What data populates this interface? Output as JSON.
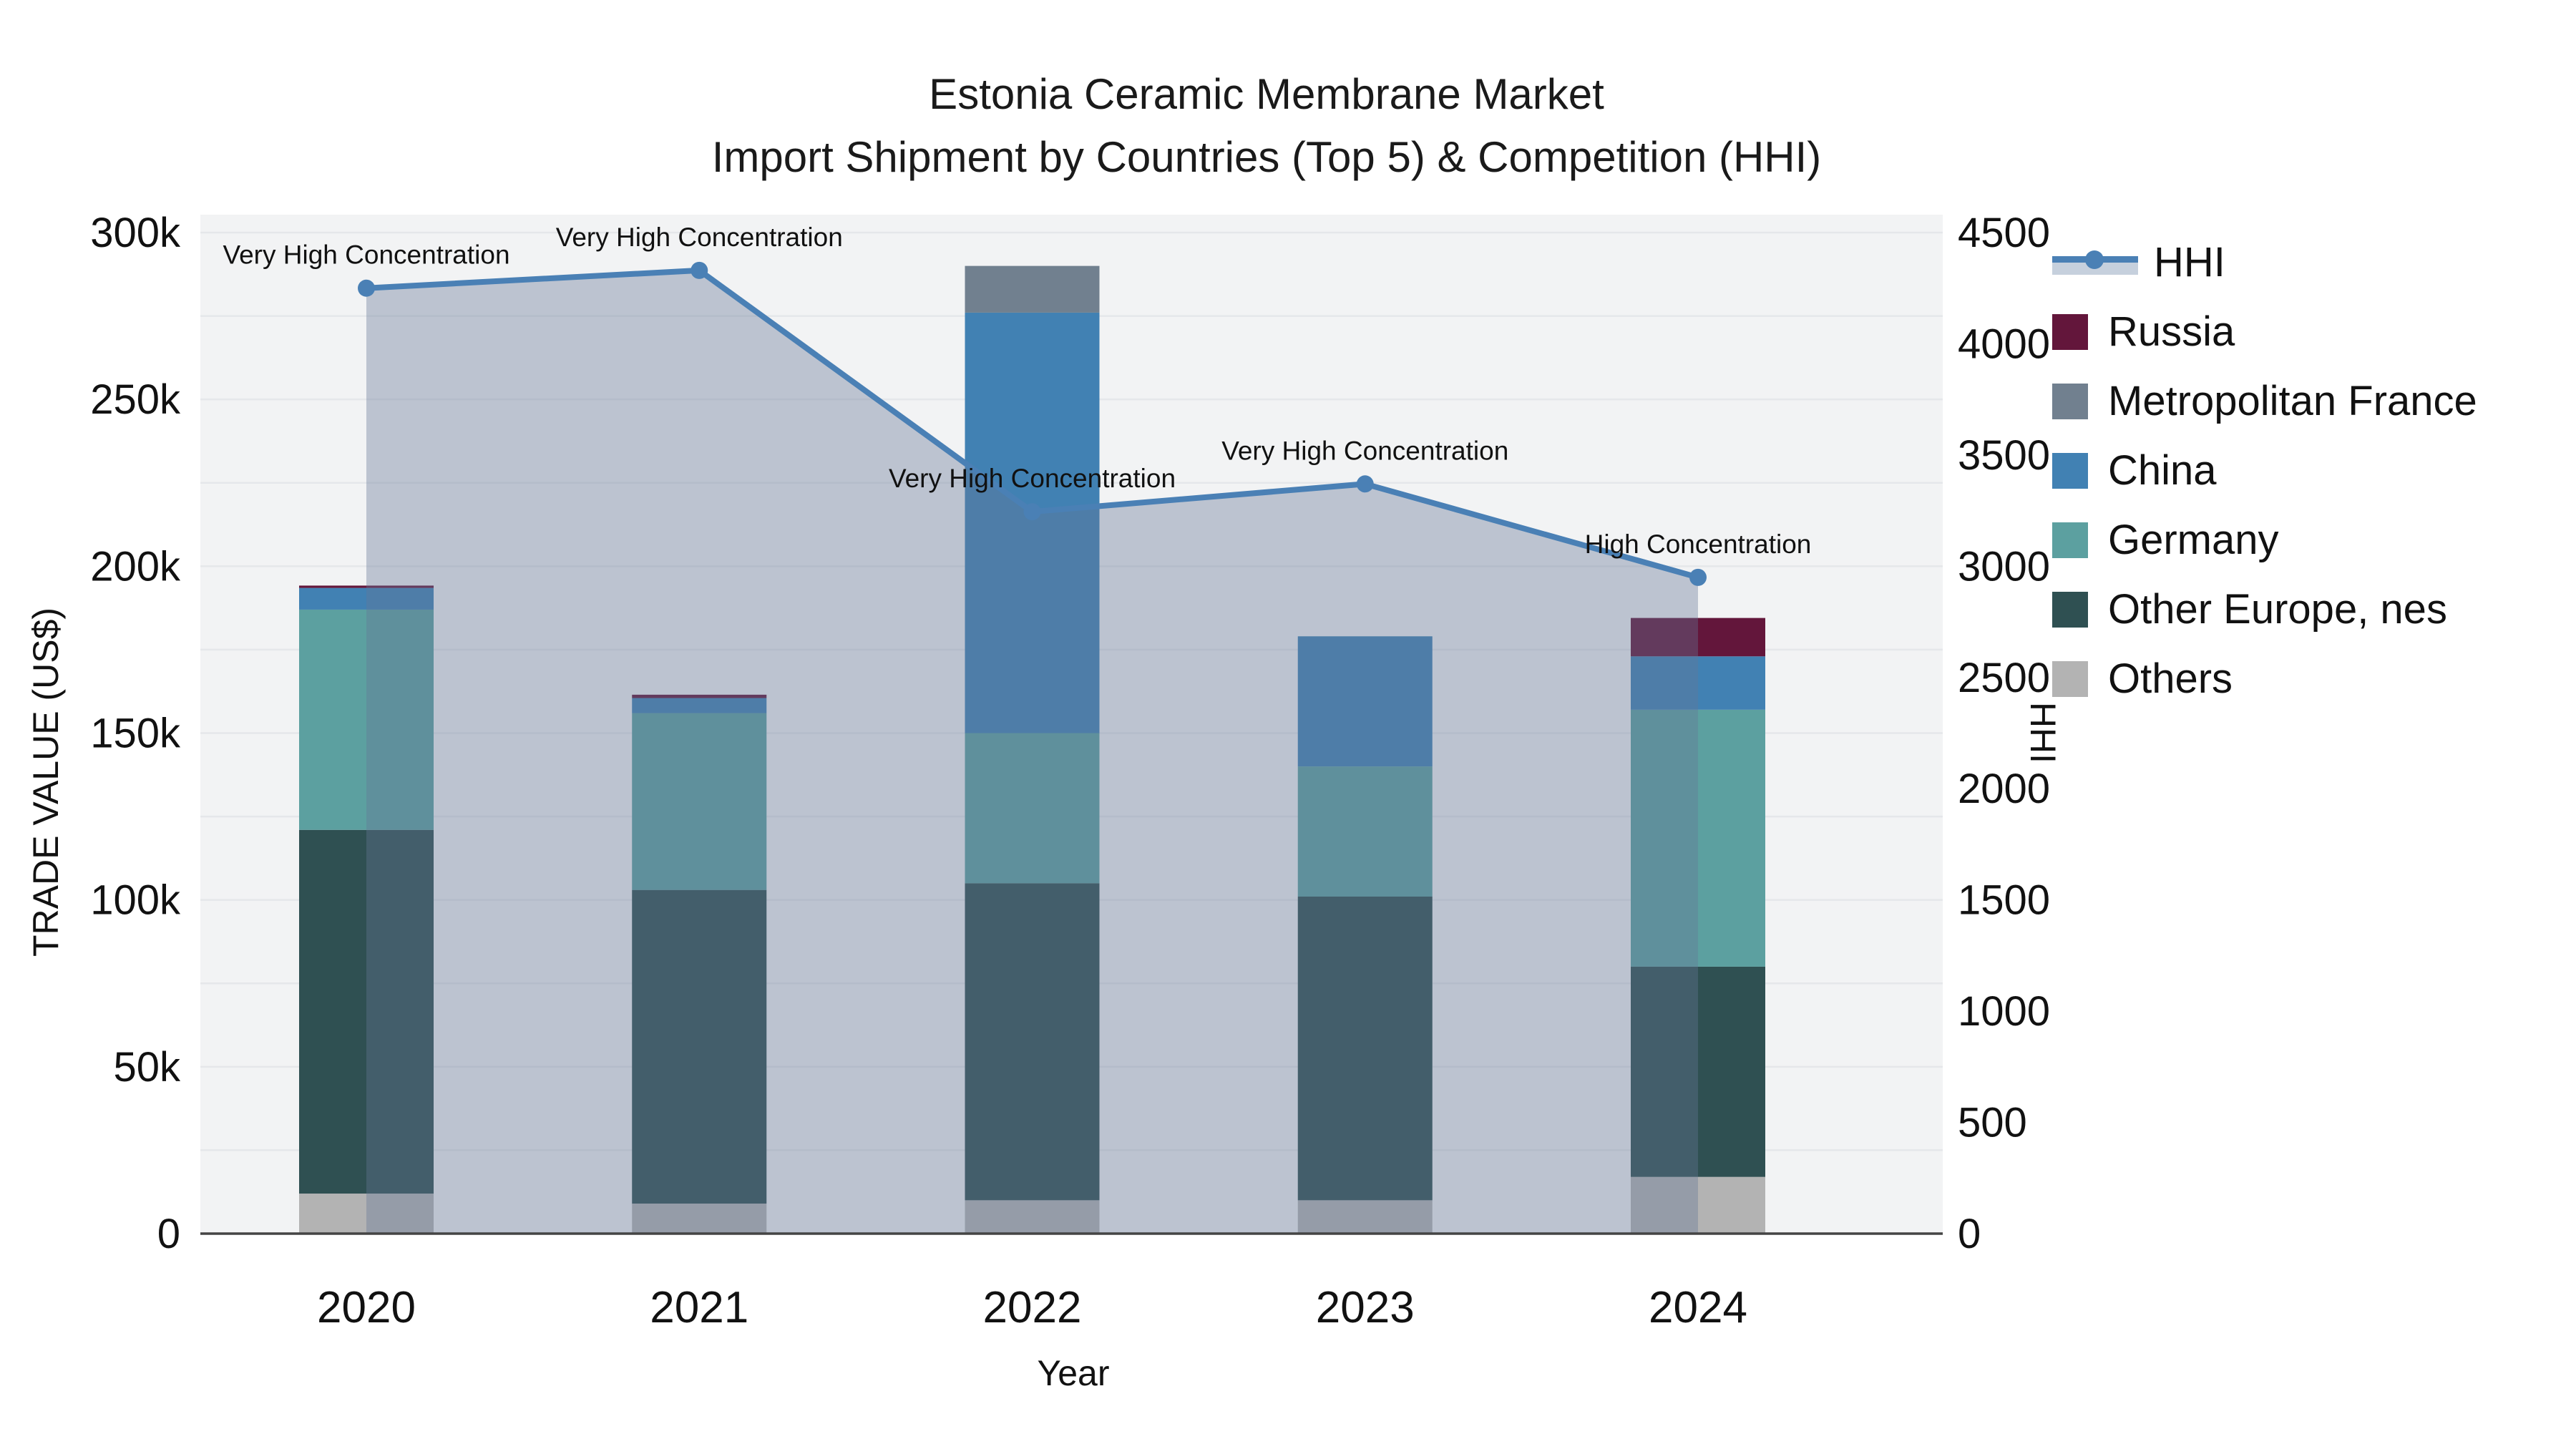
{
  "title": {
    "line1": "Estonia Ceramic Membrane Market",
    "line2": "Import Shipment by Countries (Top 5) & Competition (HHI)"
  },
  "axes": {
    "x_title": "Year",
    "y_left_title": "TRADE VALUE (US$)",
    "y_right_title": "HHI"
  },
  "colors": {
    "plot_bg": "#f2f3f4",
    "grid": "#e5e7ea",
    "axis_line": "#444444",
    "text": "#111111",
    "hhi_line": "#4a80b5",
    "hhi_fill": "rgba(100,118,149,0.38)",
    "russia": "#63163b",
    "metropolitan_france": "#71808f",
    "china": "#4181b3",
    "germany": "#5ca0a0",
    "other_europe_nes": "#2f5052",
    "others": "#b3b3b3"
  },
  "legend": {
    "items": [
      {
        "label": "HHI",
        "type": "line",
        "color": "#4a80b5",
        "band": "#c6d0dd"
      },
      {
        "label": "Russia",
        "type": "box",
        "color": "#63163b"
      },
      {
        "label": "Metropolitan France",
        "type": "box",
        "color": "#71808f"
      },
      {
        "label": "China",
        "type": "box",
        "color": "#4181b3"
      },
      {
        "label": "Germany",
        "type": "box",
        "color": "#5ca0a0"
      },
      {
        "label": "Other Europe, nes",
        "type": "box",
        "color": "#2f5052"
      },
      {
        "label": "Others",
        "type": "box",
        "color": "#b3b3b3"
      }
    ]
  },
  "chart_data": {
    "type": "bar",
    "subtype": "stacked-bars-with-line",
    "title": "Estonia Ceramic Membrane Market — Import Shipment by Countries (Top 5) & Competition (HHI)",
    "xlabel": "Year",
    "ylabel": "TRADE VALUE (US$)",
    "ylabel_right": "HHI",
    "categories": [
      "2020",
      "2021",
      "2022",
      "2023",
      "2024"
    ],
    "series": [
      {
        "name": "Others",
        "color_key": "others",
        "values": [
          12000,
          9000,
          10000,
          10000,
          17000
        ]
      },
      {
        "name": "Other Europe, nes",
        "color_key": "other_europe_nes",
        "values": [
          109000,
          94000,
          95000,
          91000,
          63000
        ]
      },
      {
        "name": "Germany",
        "color_key": "germany",
        "values": [
          66000,
          53000,
          45000,
          39000,
          77000
        ]
      },
      {
        "name": "China",
        "color_key": "china",
        "values": [
          6500,
          4500,
          126000,
          39000,
          16000
        ]
      },
      {
        "name": "Metropolitan France",
        "color_key": "metropolitan_france",
        "values": [
          0,
          0,
          14000,
          0,
          0
        ]
      },
      {
        "name": "Russia",
        "color_key": "russia",
        "values": [
          700,
          1000,
          0,
          0,
          11500
        ]
      }
    ],
    "line_series": {
      "name": "HHI",
      "values": [
        4250,
        4330,
        3245,
        3370,
        2950
      ],
      "axis": "right"
    },
    "annotations": [
      {
        "category": "2020",
        "text": "Very High Concentration"
      },
      {
        "category": "2021",
        "text": "Very High Concentration"
      },
      {
        "category": "2022",
        "text": "Very High Concentration"
      },
      {
        "category": "2023",
        "text": "Very High Concentration"
      },
      {
        "category": "2024",
        "text": "High Concentration"
      }
    ],
    "y_left": {
      "min": 0,
      "max": 300000,
      "ticks": [
        0,
        50000,
        100000,
        150000,
        200000,
        250000,
        300000
      ],
      "tick_labels": [
        "0",
        "50k",
        "100k",
        "150k",
        "200k",
        "250k",
        "300k"
      ],
      "grid_step": 25000
    },
    "y_right": {
      "min": 0,
      "max": 4500,
      "ticks": [
        0,
        500,
        1000,
        1500,
        2000,
        2500,
        3000,
        3500,
        4000,
        4500
      ],
      "tick_labels": [
        "0",
        "500",
        "1000",
        "1500",
        "2000",
        "2500",
        "3000",
        "3500",
        "4000",
        "4500"
      ]
    },
    "legend_position": "right",
    "grid": true
  }
}
